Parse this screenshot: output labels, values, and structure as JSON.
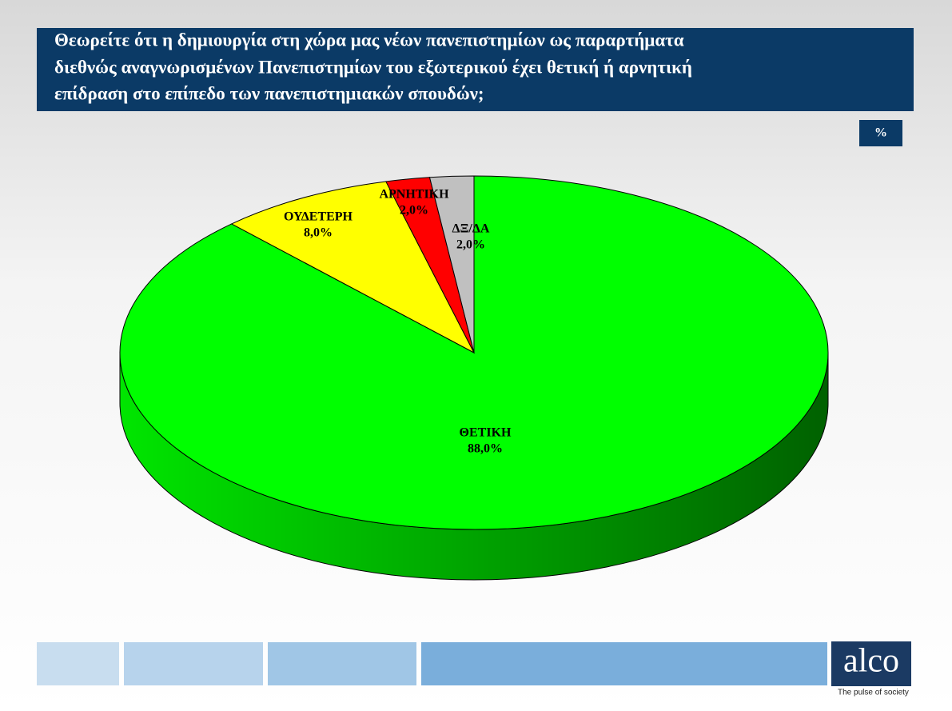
{
  "chart_data": {
    "type": "pie",
    "title": [
      "Θεωρείτε ότι η δημιουργία στη χώρα μας νέων πανεπιστημίων ως παραρτήματα",
      "διεθνώς αναγνωρισμένων Πανεπιστημίων του εξωτερικού έχει θετική ή αρνητική",
      "επίδραση στο επίπεδο των πανεπιστημιακών σπουδών;"
    ],
    "unit": "%",
    "categories": [
      "ΘΕΤΙΚΗ",
      "ΟΥΔΕΤΕΡΗ",
      "ΑΡΝΗΤΙΚΗ",
      "ΔΞ/ΔΑ"
    ],
    "values": [
      88,
      8,
      2,
      2
    ],
    "value_labels": [
      "88,0%",
      "8,0%",
      "2,0%",
      "2,0%"
    ],
    "colors": [
      "#00ff00",
      "#ffff00",
      "#ff0000",
      "#c0c0c0"
    ]
  },
  "footer": {
    "logo": "alco",
    "tagline": "The pulse of society"
  }
}
